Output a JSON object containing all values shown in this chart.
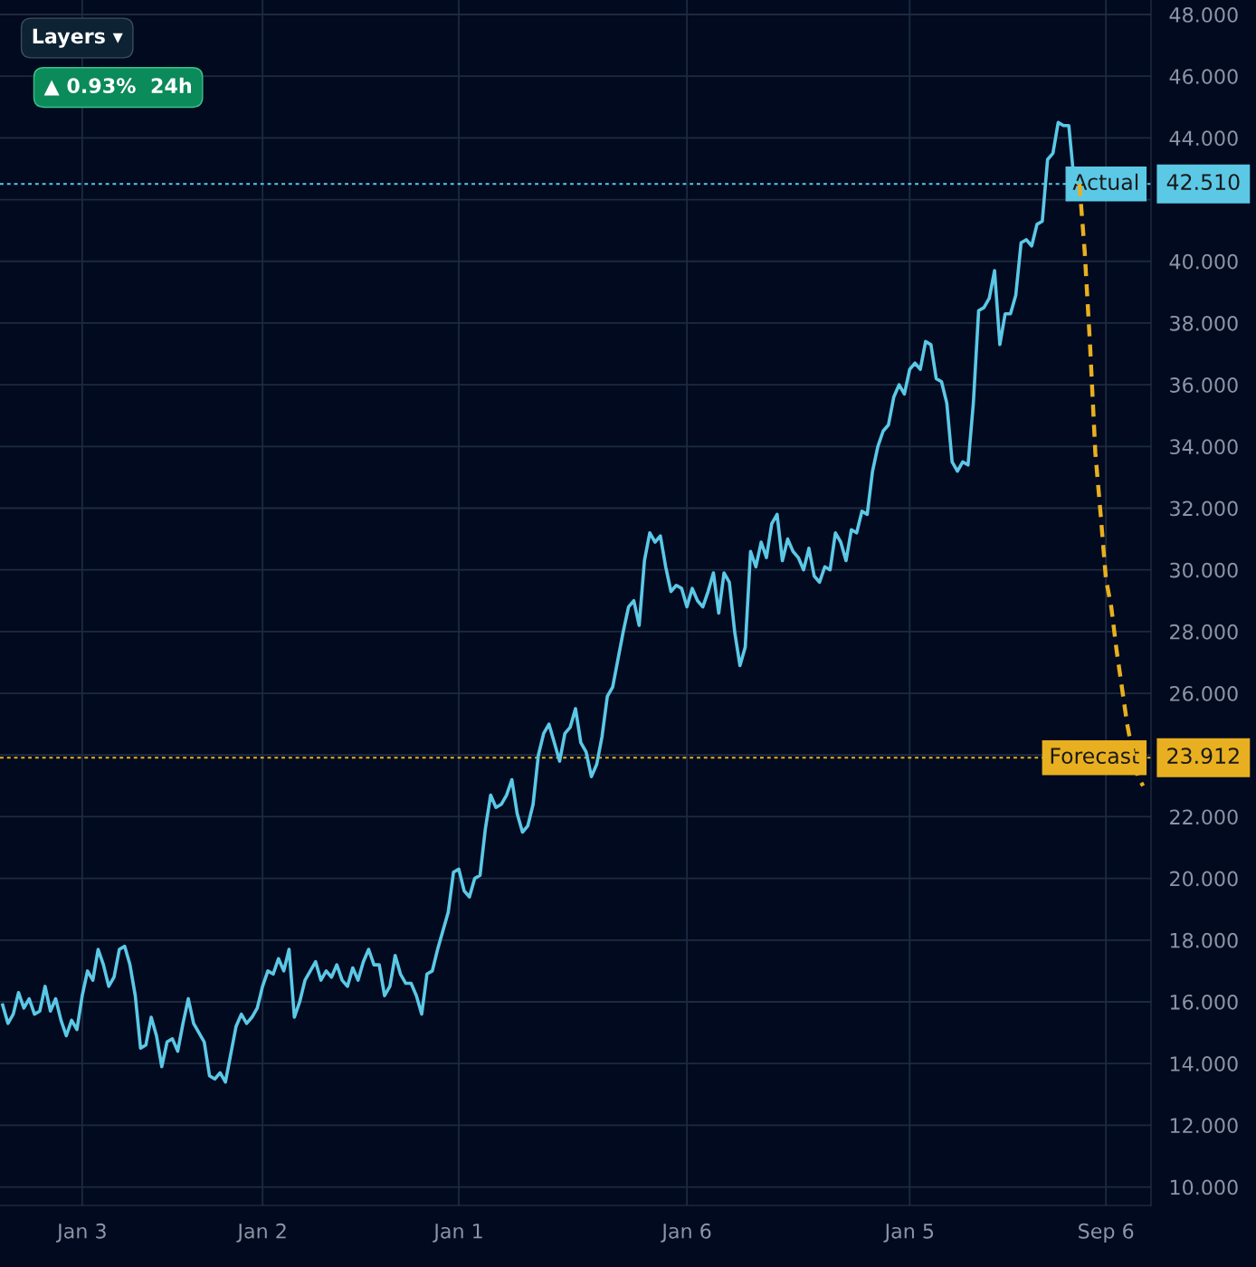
{
  "chart_data": {
    "type": "line",
    "categories": [
      null,
      null,
      null,
      null,
      null,
      null,
      null,
      null,
      null,
      null,
      null,
      null,
      null,
      null,
      null,
      "Jan 3",
      null,
      null,
      null,
      null,
      null,
      null,
      null,
      null,
      null,
      null,
      null,
      null,
      null,
      null,
      null,
      null,
      null,
      null,
      null,
      null,
      null,
      null,
      null,
      null,
      null,
      null,
      null,
      null,
      null,
      null,
      null,
      null,
      null,
      "Jan 2",
      null,
      null,
      null,
      null,
      null,
      null,
      null,
      null,
      null,
      null,
      null,
      null,
      null,
      null,
      null,
      null,
      null,
      null,
      null,
      null,
      null,
      null,
      null,
      null,
      null,
      null,
      null,
      null,
      null,
      null,
      null,
      null,
      null,
      null,
      null,
      null,
      "Jan 1",
      null,
      null,
      null,
      null,
      null,
      null,
      null,
      null,
      null,
      null,
      null,
      null,
      null,
      null,
      null,
      null,
      null,
      null,
      null,
      null,
      null,
      null,
      null,
      null,
      null,
      null,
      null,
      null,
      null,
      null,
      null,
      null,
      null,
      null,
      null,
      null,
      null,
      null,
      null,
      null,
      null,
      null,
      "Jan 6",
      null,
      null,
      null,
      null,
      null,
      null,
      null,
      null,
      null,
      null,
      null,
      null,
      null,
      null,
      null,
      null,
      null,
      null,
      null,
      null,
      null,
      null,
      null,
      null,
      null,
      null,
      null,
      null,
      null,
      null,
      null,
      null,
      null,
      null,
      null,
      null,
      null,
      null,
      null,
      null,
      null,
      "Jan 5",
      null,
      null,
      null,
      null,
      null,
      null,
      null,
      null,
      null,
      null,
      null,
      null,
      null,
      null,
      null,
      null,
      null,
      null,
      null,
      null,
      null,
      null,
      null,
      null,
      null,
      null,
      null,
      null,
      null,
      null,
      null,
      null,
      null,
      null,
      null,
      null,
      "Sep 6",
      null,
      null,
      null,
      null,
      null,
      null,
      null
    ],
    "ylim": [
      9.4,
      48.47
    ],
    "yticks": [
      {
        "value": 10,
        "label": "10.000"
      },
      {
        "value": 12,
        "label": "12.000"
      },
      {
        "value": 14,
        "label": "14.000"
      },
      {
        "value": 16,
        "label": "16.000"
      },
      {
        "value": 18,
        "label": "18.000"
      },
      {
        "value": 20,
        "label": "20.000"
      },
      {
        "value": 22,
        "label": "22.000"
      },
      {
        "value": 24,
        "label": null
      },
      {
        "value": 26,
        "label": "26.000"
      },
      {
        "value": 28,
        "label": "28.000"
      },
      {
        "value": 30,
        "label": "30.000"
      },
      {
        "value": 32,
        "label": "32.000"
      },
      {
        "value": 34,
        "label": "34.000"
      },
      {
        "value": 36,
        "label": "36.000"
      },
      {
        "value": 38,
        "label": "38.000"
      },
      {
        "value": 40,
        "label": "40.000"
      },
      {
        "value": 42,
        "label": null
      },
      {
        "value": 44,
        "label": "44.000"
      },
      {
        "value": 46,
        "label": "46.000"
      },
      {
        "value": 48,
        "label": "48.000"
      }
    ],
    "grid": true,
    "series": [
      {
        "color": "#5bc8e6",
        "line_style": "solid",
        "values": [
          15.9,
          15.3,
          15.6,
          16.3,
          15.8,
          16.1,
          15.6,
          15.7,
          16.5,
          15.7,
          16.1,
          15.4,
          14.9,
          15.4,
          15.1,
          16.2,
          17.0,
          16.7,
          17.7,
          17.2,
          16.5,
          16.8,
          17.7,
          17.8,
          17.2,
          16.2,
          14.5,
          14.6,
          15.5,
          14.9,
          13.9,
          14.7,
          14.8,
          14.4,
          15.3,
          16.1,
          15.3,
          15.0,
          14.7,
          13.6,
          13.5,
          13.7,
          13.4,
          14.3,
          15.2,
          15.6,
          15.3,
          15.5,
          15.8,
          16.5,
          17.0,
          16.9,
          17.4,
          17.0,
          17.7,
          15.5,
          16.0,
          16.7,
          17.0,
          17.3,
          16.7,
          17.0,
          16.8,
          17.2,
          16.7,
          16.5,
          17.1,
          16.7,
          17.3,
          17.7,
          17.2,
          17.2,
          16.2,
          16.5,
          17.5,
          16.9,
          16.6,
          16.6,
          16.2,
          15.6,
          16.9,
          17.0,
          17.7,
          18.3,
          18.9,
          20.2,
          20.3,
          19.6,
          19.4,
          20.0,
          20.1,
          21.6,
          22.7,
          22.3,
          22.4,
          22.7,
          23.2,
          22.1,
          21.5,
          21.7,
          22.4,
          24.0,
          24.7,
          25.0,
          24.4,
          23.8,
          24.7,
          24.9,
          25.5,
          24.4,
          24.1,
          23.3,
          23.7,
          24.6,
          25.9,
          26.2,
          27.1,
          28.0,
          28.8,
          29.0,
          28.2,
          30.3,
          31.2,
          30.9,
          31.1,
          30.1,
          29.3,
          29.5,
          29.4,
          28.8,
          29.4,
          29.0,
          28.8,
          29.3,
          29.9,
          28.6,
          29.9,
          29.6,
          28.0,
          26.9,
          27.5,
          30.6,
          30.1,
          30.9,
          30.4,
          31.5,
          31.8,
          30.3,
          31.0,
          30.6,
          30.4,
          30.0,
          30.7,
          29.8,
          29.6,
          30.1,
          30.0,
          31.2,
          30.9,
          30.3,
          31.3,
          31.2,
          31.9,
          31.8,
          33.2,
          34.0,
          34.5,
          34.7,
          35.6,
          36.0,
          35.7,
          36.5,
          36.7,
          36.5,
          37.4,
          37.3,
          36.2,
          36.1,
          35.4,
          33.5,
          33.2,
          33.5,
          33.4,
          35.4,
          38.4,
          38.5,
          38.8,
          39.7,
          37.3,
          38.3,
          38.3,
          38.9,
          40.6,
          40.7,
          40.5,
          41.2,
          41.3,
          43.3,
          43.5,
          44.5,
          44.4,
          44.4,
          42.6,
          42.51,
          null,
          null,
          null,
          null,
          null,
          null,
          null,
          null,
          null,
          null,
          null,
          null
        ]
      },
      {
        "color": "#e8b020",
        "line_style": "dashed",
        "values": [
          null,
          null,
          null,
          null,
          null,
          null,
          null,
          null,
          null,
          null,
          null,
          null,
          null,
          null,
          null,
          null,
          null,
          null,
          null,
          null,
          null,
          null,
          null,
          null,
          null,
          null,
          null,
          null,
          null,
          null,
          null,
          null,
          null,
          null,
          null,
          null,
          null,
          null,
          null,
          null,
          null,
          null,
          null,
          null,
          null,
          null,
          null,
          null,
          null,
          null,
          null,
          null,
          null,
          null,
          null,
          null,
          null,
          null,
          null,
          null,
          null,
          null,
          null,
          null,
          null,
          null,
          null,
          null,
          null,
          null,
          null,
          null,
          null,
          null,
          null,
          null,
          null,
          null,
          null,
          null,
          null,
          null,
          null,
          null,
          null,
          null,
          null,
          null,
          null,
          null,
          null,
          null,
          null,
          null,
          null,
          null,
          null,
          null,
          null,
          null,
          null,
          null,
          null,
          null,
          null,
          null,
          null,
          null,
          null,
          null,
          null,
          null,
          null,
          null,
          null,
          null,
          null,
          null,
          null,
          null,
          null,
          null,
          null,
          null,
          null,
          null,
          null,
          null,
          null,
          null,
          null,
          null,
          null,
          null,
          null,
          null,
          null,
          null,
          null,
          null,
          null,
          null,
          null,
          null,
          null,
          null,
          null,
          null,
          null,
          null,
          null,
          null,
          null,
          null,
          null,
          null,
          null,
          null,
          null,
          null,
          null,
          null,
          null,
          null,
          null,
          null,
          null,
          null,
          null,
          null,
          null,
          null,
          null,
          null,
          null,
          null,
          null,
          null,
          null,
          null,
          null,
          null,
          null,
          null,
          null,
          null,
          null,
          null,
          null,
          null,
          null,
          null,
          null,
          null,
          null,
          null,
          null,
          null,
          null,
          null,
          null,
          null,
          null,
          42.51,
          40.3,
          37.3,
          33.8,
          31.8,
          29.7,
          28.8,
          27.4,
          26.2,
          25.0,
          24.1,
          23.3,
          23.0
        ]
      }
    ],
    "ref_lines": [
      {
        "axis": "y",
        "value": 42.51,
        "label": "Actual",
        "color": "#5bc8e6",
        "line_style": "dotted"
      },
      {
        "axis": "y",
        "value": 23.912,
        "label": "Forecast",
        "color": "#e8b020",
        "line_style": "dotted"
      }
    ],
    "annotations": [
      "42.510",
      "23.912",
      "Layers ▾",
      "▲ 0.93%  24h"
    ]
  }
}
